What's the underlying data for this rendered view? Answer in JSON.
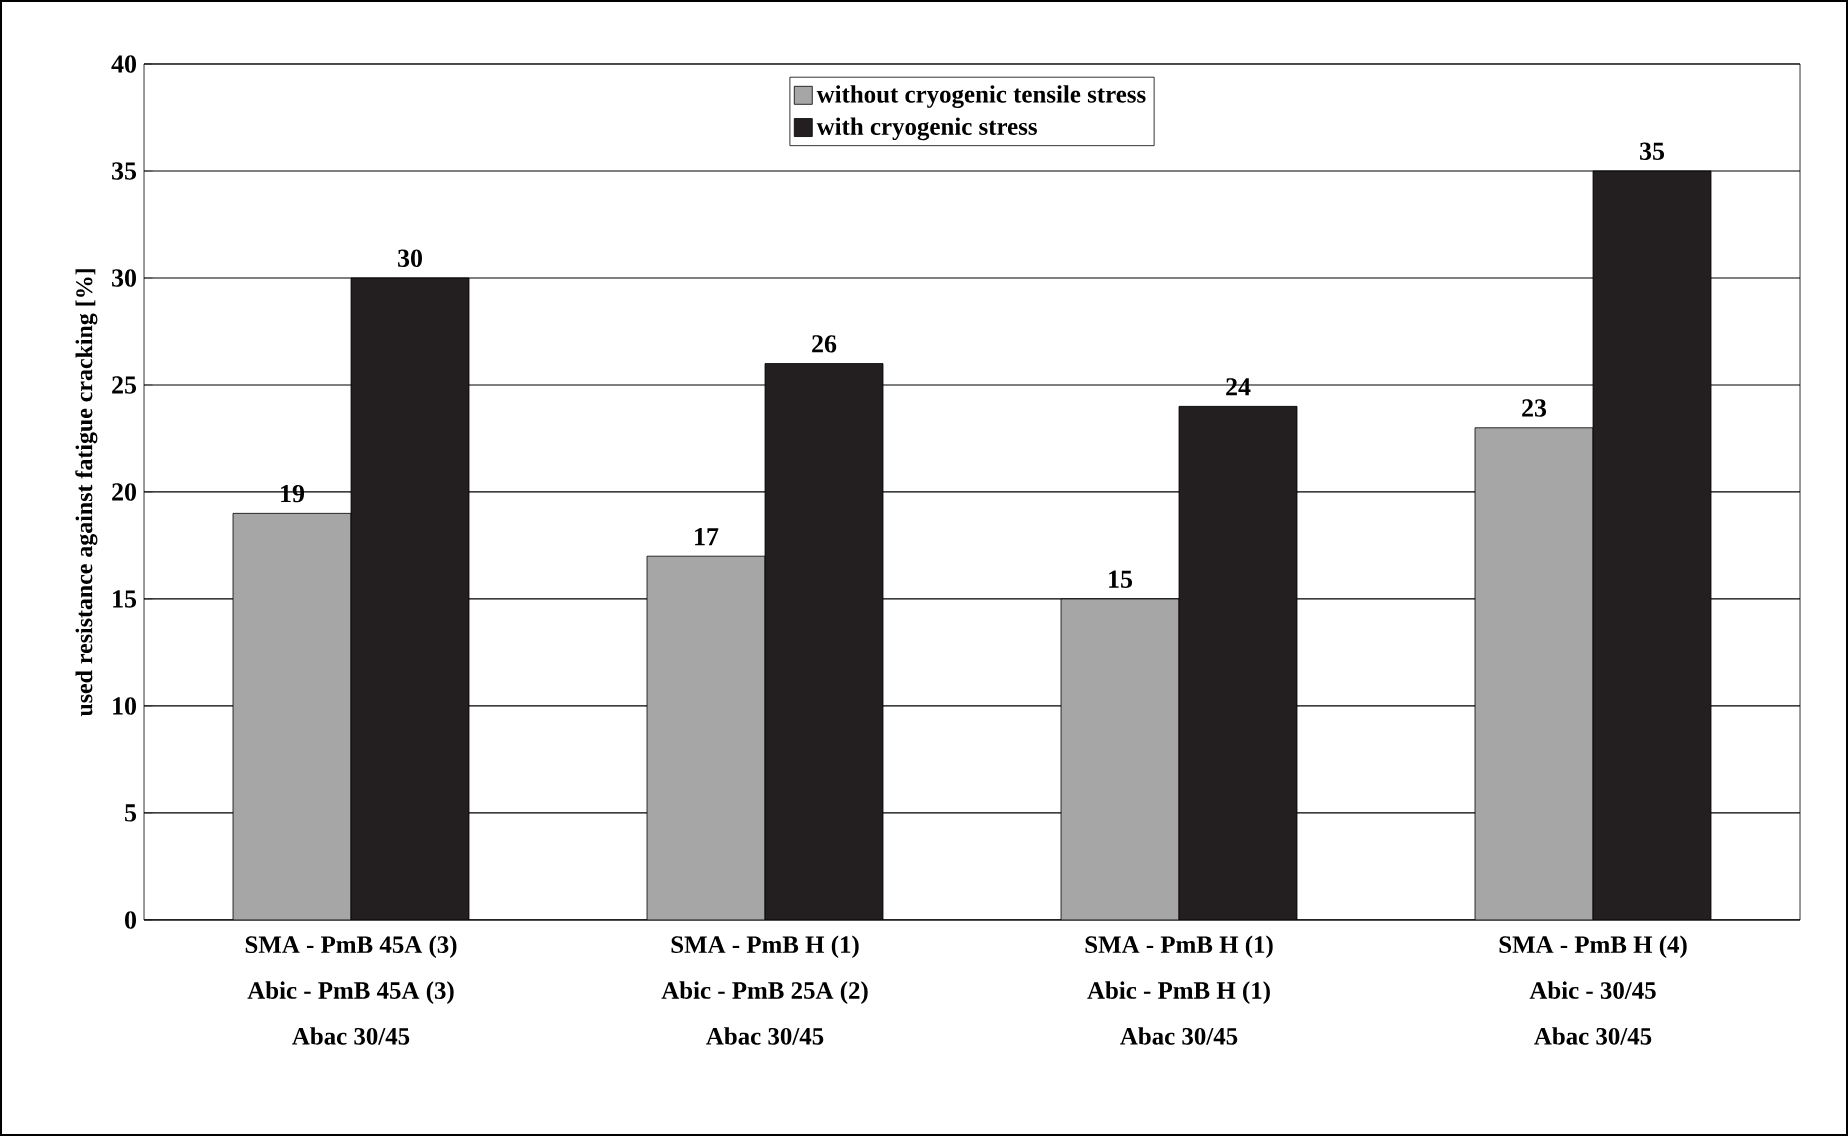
{
  "chart_data": {
    "type": "bar",
    "ylabel": "used resistance against fatigue cracking [%]",
    "categories": [
      "SMA - PmB 45A (3)\nAbic - PmB 45A (3)\nAbac 30/45",
      "SMA - PmB H (1)\nAbic - PmB 25A (2)\nAbac 30/45",
      "SMA - PmB H (1)\nAbic - PmB H (1)\nAbac 30/45",
      "SMA - PmB H (4)\nAbic - 30/45\nAbac 30/45"
    ],
    "series": [
      {
        "name": "without cryogenic tensile stress",
        "color": "#a6a6a6",
        "values": [
          19,
          17,
          15,
          23
        ]
      },
      {
        "name": "with cryogenic stress",
        "color": "#231f20",
        "values": [
          30,
          26,
          24,
          35
        ]
      }
    ],
    "ylim": [
      0,
      40
    ],
    "yticks": [
      0,
      5,
      10,
      15,
      20,
      25,
      30,
      35,
      40
    ],
    "grid": "y",
    "legend": "top",
    "data_labels": true
  }
}
